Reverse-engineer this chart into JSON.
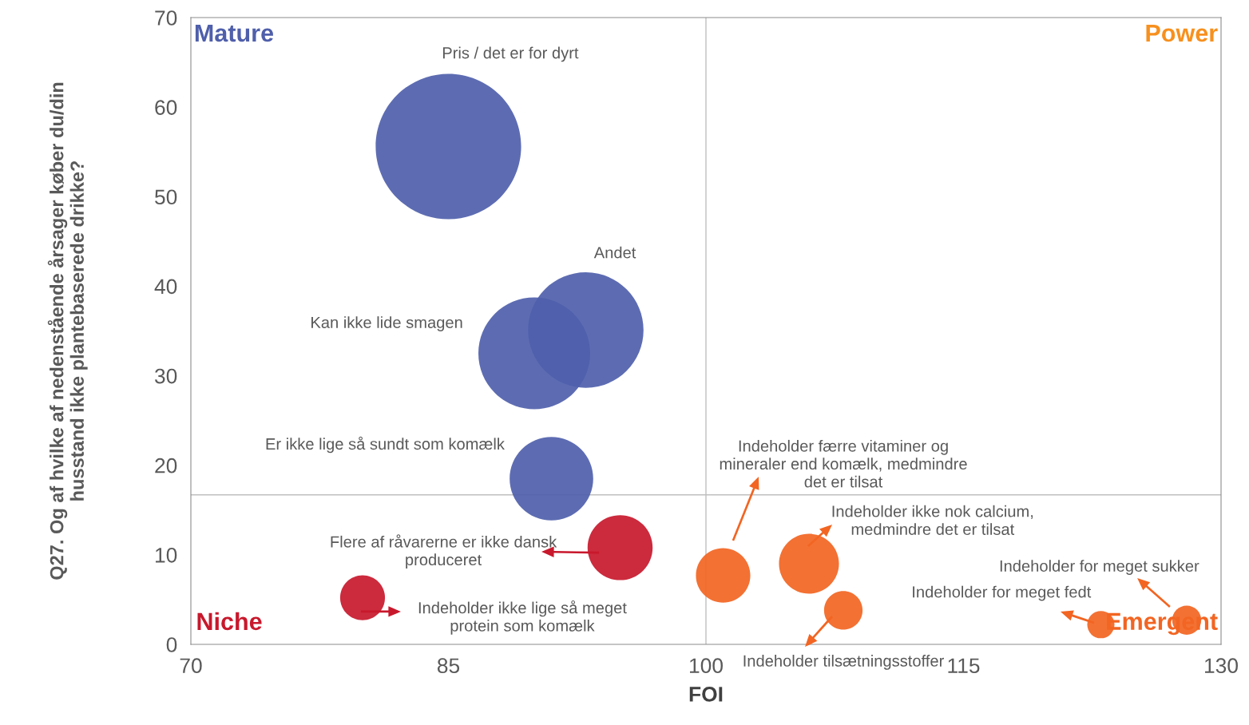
{
  "chart_data": {
    "type": "bubble",
    "xlabel": "FOI",
    "ylabel": "Q27. Og af hvilke af nedenstående årsager køber du/din\nhusstand ikke plantebaserede drikke?",
    "xlim": [
      70,
      130
    ],
    "xticks": [
      70,
      85,
      100,
      115,
      130
    ],
    "ylim": [
      0,
      70
    ],
    "yticks": [
      0,
      10,
      20,
      30,
      40,
      50,
      60,
      70
    ],
    "grid": false,
    "series": [
      {
        "color": "#4f5fab",
        "x": [
          85.0,
          93.0,
          90.0,
          91.0
        ],
        "values": [
          55.6,
          35.1,
          32.5,
          18.5
        ],
        "sizes": [
          1,
          0.63,
          0.59,
          0.33
        ]
      },
      {
        "color": "#c8182c",
        "x": [
          95.0,
          80.0
        ],
        "values": [
          10.8,
          5.2
        ],
        "sizes": [
          0.2,
          0.095
        ]
      },
      {
        "color": "#f26522",
        "x": [
          101.0,
          106.0,
          108.0,
          128.0,
          123.0
        ],
        "values": [
          7.7,
          9.0,
          3.8,
          2.7,
          2.2
        ],
        "sizes": [
          0.14,
          0.17,
          0.07,
          0.04,
          0.035
        ]
      }
    ],
    "ref_lines": [
      {
        "axis": "x",
        "value": 100,
        "color": "#bfbfbf"
      },
      {
        "axis": "y",
        "value": 16.7,
        "color": "#bfbfbf"
      }
    ],
    "annotations": [
      "Mature",
      "Power",
      "Niche",
      "Emergent",
      "Pris / det er for dyrt",
      "Andet",
      "Kan ikke lide smagen",
      "Er ikke lige så sundt som komælk",
      "Flere af råvarerne er ikke dansk\nproduceret",
      "Indeholder ikke lige så meget\nprotein som komælk",
      "Indeholder færre vitaminer og\nmineraler end komælk, medmindre\ndet er tilsat",
      "Indeholder ikke nok calcium,\nmedmindre det er tilsat",
      "Indeholder tilsætningsstoffer",
      "Indeholder for meget sukker",
      "Indeholder for meget fedt"
    ]
  }
}
